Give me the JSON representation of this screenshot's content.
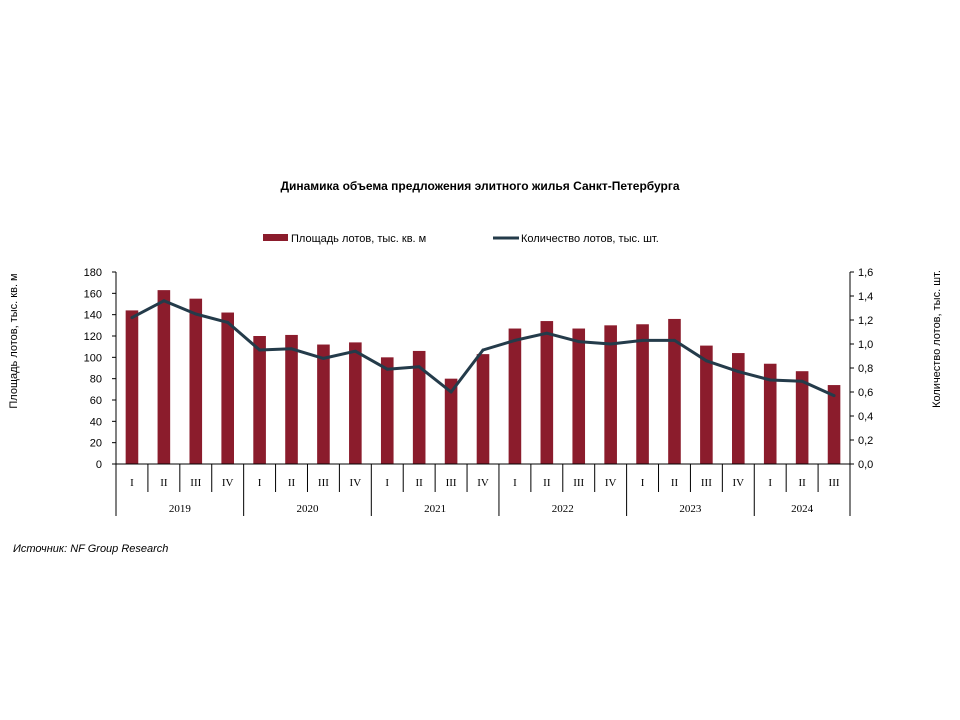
{
  "source": "Источник: NF Group Research",
  "chart_data": {
    "type": "bar",
    "title": "Динамика объема предложения элитного жилья Санкт-Петербурга",
    "ylabel": "Площадь лотов, тыс. кв. м",
    "y2label": "Количество лотов, тыс. шт.",
    "ylim": [
      0,
      180
    ],
    "y2lim": [
      0,
      1.6
    ],
    "yticks": [
      "0",
      "20",
      "40",
      "60",
      "80",
      "100",
      "120",
      "140",
      "160",
      "180"
    ],
    "y2ticks": [
      "0,0",
      "0,2",
      "0,4",
      "0,6",
      "0,8",
      "1,0",
      "1,2",
      "1,4",
      "1,6"
    ],
    "grid": false,
    "legend_position": "top-center",
    "colors": {
      "bar": "#8B1C2C",
      "line": "#243B4A"
    },
    "groups": [
      {
        "year": "2019",
        "quarters": [
          "I",
          "II",
          "III",
          "IV"
        ]
      },
      {
        "year": "2020",
        "quarters": [
          "I",
          "II",
          "III",
          "IV"
        ]
      },
      {
        "year": "2021",
        "quarters": [
          "I",
          "II",
          "III",
          "IV"
        ]
      },
      {
        "year": "2022",
        "quarters": [
          "I",
          "II",
          "III",
          "IV"
        ]
      },
      {
        "year": "2023",
        "quarters": [
          "I",
          "II",
          "III",
          "IV"
        ]
      },
      {
        "year": "2024",
        "quarters": [
          "I",
          "II",
          "III"
        ]
      }
    ],
    "series": [
      {
        "name": "Площадь лотов, тыс. кв. м",
        "type": "bar",
        "axis": "left",
        "values": [
          144,
          163,
          155,
          142,
          120,
          121,
          112,
          114,
          100,
          106,
          80,
          103,
          127,
          134,
          127,
          130,
          131,
          136,
          111,
          104,
          94,
          87,
          74
        ]
      },
      {
        "name": "Количество лотов, тыс. шт.",
        "type": "line",
        "axis": "right",
        "values": [
          1.22,
          1.36,
          1.25,
          1.18,
          0.95,
          0.96,
          0.88,
          0.94,
          0.79,
          0.81,
          0.6,
          0.95,
          1.03,
          1.09,
          1.02,
          1.0,
          1.03,
          1.03,
          0.86,
          0.77,
          0.7,
          0.69,
          0.57
        ]
      }
    ]
  }
}
